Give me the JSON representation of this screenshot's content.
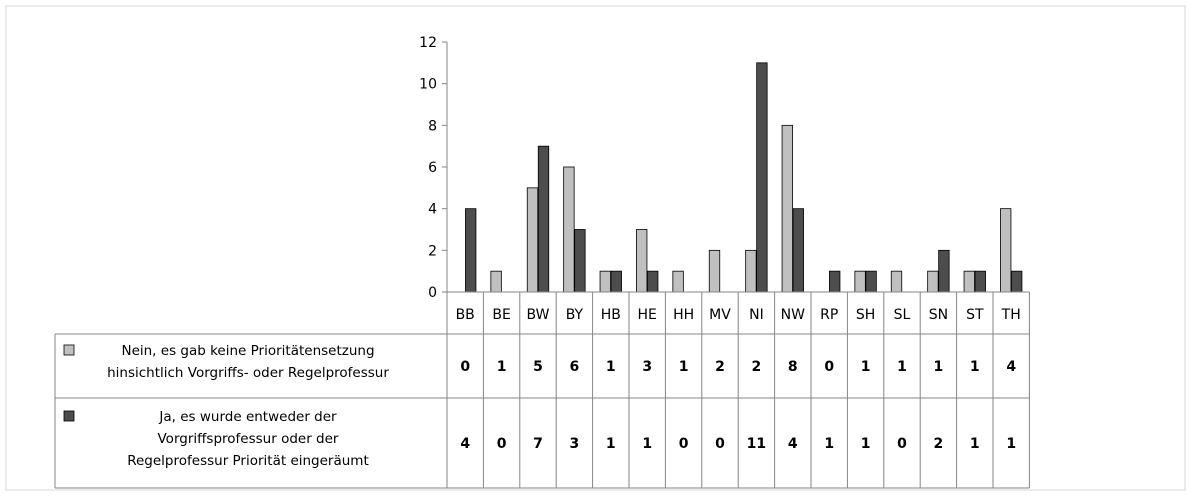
{
  "chart_data": {
    "type": "bar",
    "categories": [
      "BB",
      "BE",
      "BW",
      "BY",
      "HB",
      "HE",
      "HH",
      "MV",
      "NI",
      "NW",
      "RP",
      "SH",
      "SL",
      "SN",
      "ST",
      "TH"
    ],
    "series": [
      {
        "name": "Nein, es gab keine Prioritätensetzung hinsichtlich Vorgriffs- oder Regelprofessur",
        "name_lines": [
          "Nein, es gab keine Prioritätensetzung",
          "hinsichtlich Vorgriffs- oder Regelprofessur"
        ],
        "color": "#c0c0c0",
        "values": [
          0,
          1,
          5,
          6,
          1,
          3,
          1,
          2,
          2,
          8,
          0,
          1,
          1,
          1,
          1,
          4
        ]
      },
      {
        "name": "Ja, es wurde entweder der Vorgriffsprofessur oder der Regelprofessur Priorität eingeräumt",
        "name_lines": [
          "Ja, es wurde entweder der",
          "Vorgriffsprofessur oder der",
          "Regelprofessur Priorität eingeräumt"
        ],
        "color": "#4d4d4d",
        "values": [
          4,
          0,
          7,
          3,
          1,
          1,
          0,
          0,
          11,
          4,
          1,
          1,
          0,
          2,
          1,
          1
        ]
      }
    ],
    "ylim": [
      0,
      12
    ],
    "yticks": [
      "0",
      "2",
      "4",
      "6",
      "8",
      "10",
      "12"
    ],
    "grid": false,
    "legend": "data-table"
  }
}
